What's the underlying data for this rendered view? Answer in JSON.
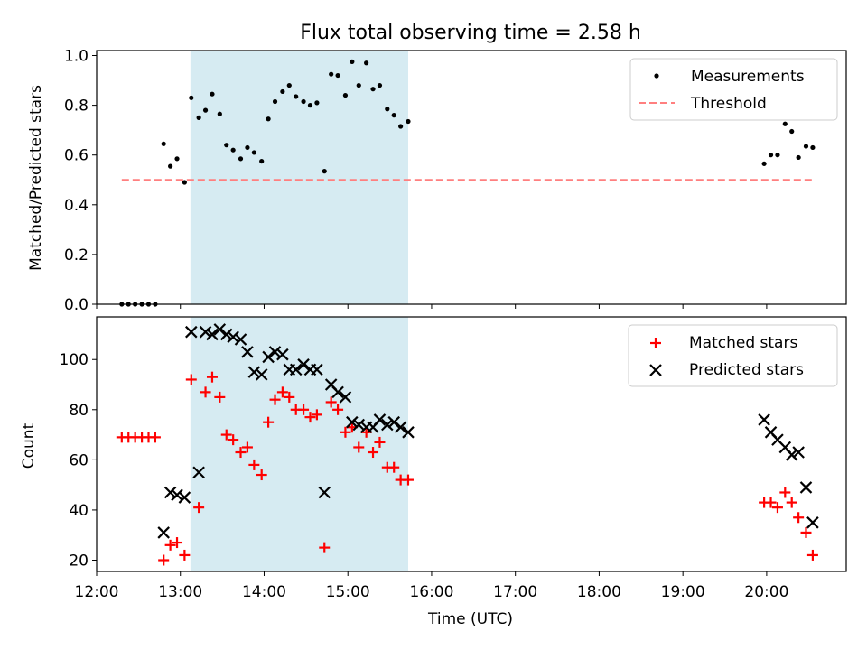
{
  "figure": {
    "title": "Flux total observing time = 2.58 h"
  },
  "chart_data": [
    {
      "type": "scatter",
      "ylabel": "Matched/Predicted stars",
      "xlim": [
        12.0,
        20.95
      ],
      "ylim": [
        0.0,
        1.02
      ],
      "yticks": [
        "0.0",
        "0.2",
        "0.4",
        "0.6",
        "0.8",
        "1.0"
      ],
      "span": {
        "start": 13.12,
        "end": 15.72,
        "color": "#add8e6"
      },
      "legend": {
        "position": "top-right",
        "entries": [
          "Measurements",
          "Threshold"
        ]
      },
      "threshold": {
        "name": "Threshold",
        "y": 0.5,
        "x": [
          12.3,
          20.55
        ],
        "color": "#ff7f7f"
      },
      "series": [
        {
          "name": "Measurements",
          "color": "#000000",
          "points": [
            [
              12.3,
              0
            ],
            [
              12.38,
              0
            ],
            [
              12.46,
              0
            ],
            [
              12.54,
              0
            ],
            [
              12.62,
              0
            ],
            [
              12.7,
              0
            ],
            [
              12.8,
              0.645
            ],
            [
              12.88,
              0.555
            ],
            [
              12.96,
              0.585
            ],
            [
              13.05,
              0.49
            ],
            [
              13.13,
              0.83
            ],
            [
              13.22,
              0.75
            ],
            [
              13.3,
              0.78
            ],
            [
              13.38,
              0.845
            ],
            [
              13.47,
              0.765
            ],
            [
              13.55,
              0.64
            ],
            [
              13.63,
              0.62
            ],
            [
              13.72,
              0.585
            ],
            [
              13.8,
              0.63
            ],
            [
              13.88,
              0.61
            ],
            [
              13.97,
              0.575
            ],
            [
              14.05,
              0.745
            ],
            [
              14.13,
              0.815
            ],
            [
              14.22,
              0.855
            ],
            [
              14.3,
              0.88
            ],
            [
              14.38,
              0.835
            ],
            [
              14.47,
              0.815
            ],
            [
              14.55,
              0.8
            ],
            [
              14.63,
              0.81
            ],
            [
              14.72,
              0.535
            ],
            [
              14.8,
              0.925
            ],
            [
              14.88,
              0.92
            ],
            [
              14.97,
              0.84
            ],
            [
              15.05,
              0.975
            ],
            [
              15.13,
              0.88
            ],
            [
              15.22,
              0.97
            ],
            [
              15.3,
              0.865
            ],
            [
              15.38,
              0.88
            ],
            [
              15.47,
              0.785
            ],
            [
              15.55,
              0.76
            ],
            [
              15.63,
              0.715
            ],
            [
              15.72,
              0.735
            ],
            [
              19.97,
              0.565
            ],
            [
              20.05,
              0.6
            ],
            [
              20.13,
              0.6
            ],
            [
              20.22,
              0.725
            ],
            [
              20.3,
              0.695
            ],
            [
              20.38,
              0.59
            ],
            [
              20.47,
              0.635
            ],
            [
              20.55,
              0.63
            ]
          ]
        }
      ]
    },
    {
      "type": "scatter",
      "xlabel": "Time (UTC)",
      "ylabel": "Count",
      "xlim": [
        12.0,
        20.95
      ],
      "ylim": [
        15.5,
        117
      ],
      "yticks": [
        "20",
        "40",
        "60",
        "80",
        "100"
      ],
      "xticks": [
        "12:00",
        "13:00",
        "14:00",
        "15:00",
        "16:00",
        "17:00",
        "18:00",
        "19:00",
        "20:00"
      ],
      "span": {
        "start": 13.12,
        "end": 15.72,
        "color": "#add8e6"
      },
      "legend": {
        "position": "top-right",
        "entries": [
          "Matched stars",
          "Predicted stars"
        ]
      },
      "series": [
        {
          "name": "Matched stars",
          "marker": "plus",
          "color": "#ff0000",
          "points": [
            [
              12.3,
              69
            ],
            [
              12.38,
              69
            ],
            [
              12.46,
              69
            ],
            [
              12.54,
              69
            ],
            [
              12.62,
              69
            ],
            [
              12.7,
              69
            ],
            [
              12.8,
              20
            ],
            [
              12.88,
              26
            ],
            [
              12.96,
              27
            ],
            [
              13.05,
              22
            ],
            [
              13.13,
              92
            ],
            [
              13.22,
              41
            ],
            [
              13.3,
              87
            ],
            [
              13.38,
              93
            ],
            [
              13.47,
              85
            ],
            [
              13.55,
              70
            ],
            [
              13.63,
              68
            ],
            [
              13.72,
              63
            ],
            [
              13.8,
              65
            ],
            [
              13.88,
              58
            ],
            [
              13.97,
              54
            ],
            [
              14.05,
              75
            ],
            [
              14.13,
              84
            ],
            [
              14.22,
              87
            ],
            [
              14.3,
              85
            ],
            [
              14.38,
              80
            ],
            [
              14.47,
              80
            ],
            [
              14.55,
              77
            ],
            [
              14.63,
              78
            ],
            [
              14.72,
              25
            ],
            [
              14.8,
              83
            ],
            [
              14.88,
              80
            ],
            [
              14.97,
              71
            ],
            [
              15.05,
              73
            ],
            [
              15.13,
              65
            ],
            [
              15.22,
              71
            ],
            [
              15.3,
              63
            ],
            [
              15.38,
              67
            ],
            [
              15.47,
              57
            ],
            [
              15.55,
              57
            ],
            [
              15.63,
              52
            ],
            [
              15.72,
              52
            ],
            [
              19.97,
              43
            ],
            [
              20.05,
              43
            ],
            [
              20.13,
              41
            ],
            [
              20.22,
              47
            ],
            [
              20.3,
              43
            ],
            [
              20.38,
              37
            ],
            [
              20.47,
              31
            ],
            [
              20.55,
              22
            ]
          ]
        },
        {
          "name": "Predicted stars",
          "marker": "x",
          "color": "#000000",
          "points": [
            [
              12.8,
              31
            ],
            [
              12.88,
              47
            ],
            [
              12.96,
              46
            ],
            [
              13.05,
              45
            ],
            [
              13.13,
              111
            ],
            [
              13.22,
              55
            ],
            [
              13.3,
              111
            ],
            [
              13.38,
              110
            ],
            [
              13.47,
              112
            ],
            [
              13.55,
              110
            ],
            [
              13.63,
              109
            ],
            [
              13.72,
              108
            ],
            [
              13.8,
              103
            ],
            [
              13.88,
              95
            ],
            [
              13.97,
              94
            ],
            [
              14.05,
              101
            ],
            [
              14.13,
              103
            ],
            [
              14.22,
              102
            ],
            [
              14.3,
              96
            ],
            [
              14.38,
              96
            ],
            [
              14.47,
              98
            ],
            [
              14.55,
              96
            ],
            [
              14.63,
              96
            ],
            [
              14.72,
              47
            ],
            [
              14.8,
              90
            ],
            [
              14.88,
              87
            ],
            [
              14.97,
              85
            ],
            [
              15.05,
              75
            ],
            [
              15.13,
              74
            ],
            [
              15.22,
              73
            ],
            [
              15.3,
              73
            ],
            [
              15.38,
              76
            ],
            [
              15.47,
              74
            ],
            [
              15.55,
              75
            ],
            [
              15.63,
              73
            ],
            [
              15.72,
              71
            ],
            [
              19.97,
              76
            ],
            [
              20.05,
              71
            ],
            [
              20.13,
              68
            ],
            [
              20.22,
              65
            ],
            [
              20.3,
              62
            ],
            [
              20.38,
              63
            ],
            [
              20.47,
              49
            ],
            [
              20.55,
              35
            ]
          ]
        }
      ]
    }
  ]
}
